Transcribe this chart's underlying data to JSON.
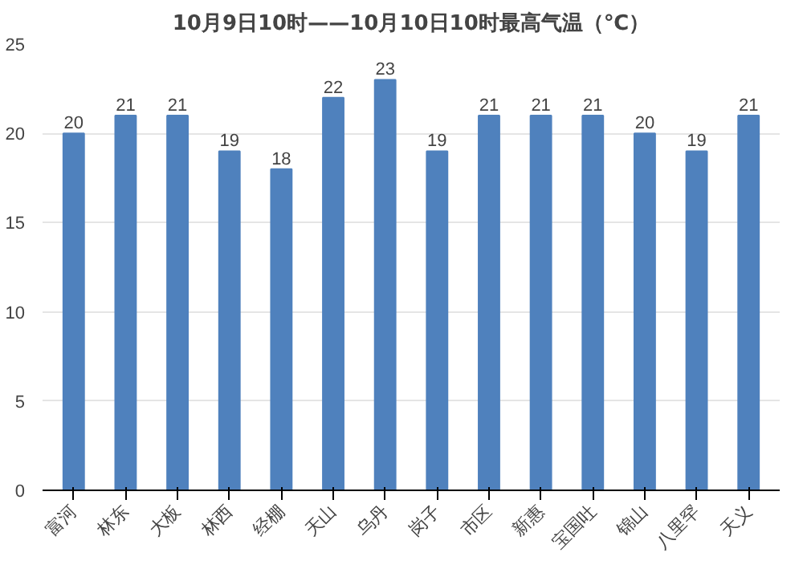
{
  "chart_data": {
    "type": "bar",
    "title": "10月9日10时——10月10日10时最高气温（℃）",
    "categories": [
      "富河",
      "林东",
      "大板",
      "林西",
      "经棚",
      "天山",
      "乌丹",
      "岗子",
      "市区",
      "新惠",
      "宝国吐",
      "锦山",
      "八里罕",
      "天义"
    ],
    "values": [
      20,
      21,
      21,
      19,
      18,
      22,
      23,
      19,
      21,
      21,
      21,
      20,
      19,
      21
    ],
    "color": "#4f81bd",
    "ylim": [
      0,
      25
    ],
    "yticks": [
      0,
      5,
      10,
      15,
      20,
      25
    ],
    "grid": "y",
    "data_labels": true
  }
}
